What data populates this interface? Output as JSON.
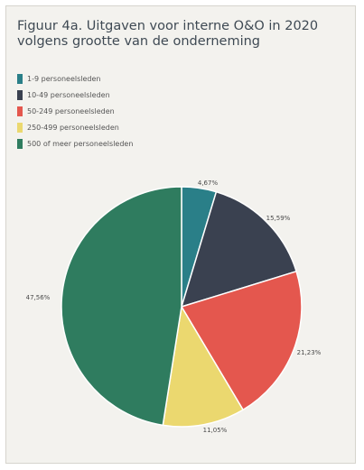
{
  "chart_data": {
    "type": "pie",
    "title": "Figuur 4a. Uitgaven voor interne O&O in 2020 volgens grootte van de onderneming",
    "legend_position": "top-left",
    "slices": [
      {
        "label": "1-9 personeelsleden",
        "value": 4.67,
        "display": "4,67%",
        "color": "#2a7f88"
      },
      {
        "label": "10-49 personeelsleden",
        "value": 15.59,
        "display": "15,59%",
        "color": "#3a4150"
      },
      {
        "label": "50-249 personeelsleden",
        "value": 21.23,
        "display": "21,23%",
        "color": "#e4574e"
      },
      {
        "label": "250-499 personeelsleden",
        "value": 11.05,
        "display": "11,05%",
        "color": "#ebd86f"
      },
      {
        "label": "500 of meer personeelsleden",
        "value": 47.56,
        "display": "47,56%",
        "color": "#2f7c5f"
      }
    ]
  }
}
